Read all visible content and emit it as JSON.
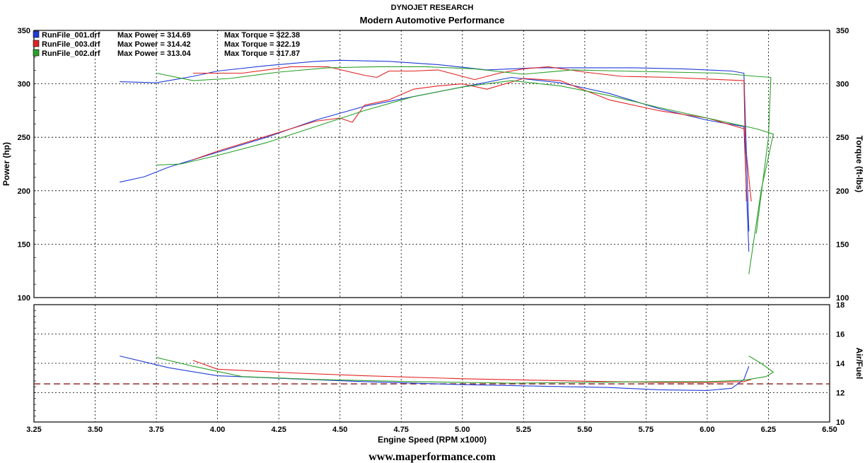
{
  "header": {
    "title": "DYNOJET RESEARCH",
    "subtitle": "Modern Automotive Performance"
  },
  "footer": {
    "url": "www.maperformance.com"
  },
  "legend": [
    {
      "file": "RunFile_001.drf",
      "power_text": "Max Power = 314.69",
      "torque_text": "Max Torque = 322.38",
      "color": "#1f3bd6"
    },
    {
      "file": "RunFile_003.drf",
      "power_text": "Max Power = 314.42",
      "torque_text": "Max Torque = 322.19",
      "color": "#e02424"
    },
    {
      "file": "RunFile_002.drf",
      "power_text": "Max Power = 313.04",
      "torque_text": "Max Torque = 317.87",
      "color": "#2ca02c"
    }
  ],
  "chart_data": [
    {
      "type": "line",
      "panel": "power-torque",
      "xlabel": "Engine Speed (RPM x1000)",
      "ylabel": "Power (hp)",
      "y2label": "Torque (ft-lbs)",
      "xlim": [
        3.25,
        6.5
      ],
      "ylim": [
        100,
        350
      ],
      "x_ticks": [
        "3.25",
        "3.50",
        "3.75",
        "4.00",
        "4.25",
        "4.50",
        "4.75",
        "5.00",
        "5.25",
        "5.50",
        "5.75",
        "6.00",
        "6.25",
        "6.50"
      ],
      "y_ticks": [
        "100",
        "150",
        "200",
        "250",
        "300",
        "350"
      ],
      "grid": true,
      "legend_position": "top-left",
      "series": [
        {
          "name": "RunFile_001.drf",
          "measure": "Power",
          "color": "#1f3bd6",
          "x": [
            3.6,
            3.7,
            3.8,
            4.0,
            4.2,
            4.4,
            4.6,
            4.8,
            5.0,
            5.2,
            5.4,
            5.6,
            5.8,
            6.0,
            6.15,
            6.17
          ],
          "y": [
            208,
            213,
            222,
            236,
            250,
            266,
            279,
            288,
            297,
            306,
            301,
            291,
            277,
            266,
            260,
            143
          ]
        },
        {
          "name": "RunFile_003.drf",
          "measure": "Power",
          "color": "#e02424",
          "x": [
            3.9,
            4.0,
            4.2,
            4.4,
            4.5,
            4.55,
            4.6,
            4.7,
            4.8,
            4.9,
            5.0,
            5.1,
            5.25,
            5.4,
            5.6,
            5.8,
            6.0,
            6.15,
            6.18
          ],
          "y": [
            229,
            237,
            251,
            265,
            268,
            264,
            280,
            285,
            295,
            298,
            300,
            295,
            305,
            303,
            285,
            275,
            268,
            258,
            190
          ]
        },
        {
          "name": "RunFile_002.drf",
          "measure": "Power",
          "color": "#2ca02c",
          "x": [
            3.75,
            3.85,
            4.0,
            4.2,
            4.4,
            4.6,
            4.8,
            5.0,
            5.2,
            5.4,
            5.6,
            5.8,
            6.0,
            6.2,
            6.27,
            6.22,
            6.17
          ],
          "y": [
            224,
            225,
            233,
            245,
            260,
            275,
            288,
            297,
            303,
            298,
            289,
            278,
            268,
            258,
            253,
            200,
            122
          ]
        },
        {
          "name": "RunFile_001.drf",
          "measure": "Torque",
          "color": "#1f3bd6",
          "x": [
            3.6,
            3.75,
            3.9,
            4.0,
            4.2,
            4.4,
            4.5,
            4.7,
            4.9,
            5.1,
            5.3,
            5.5,
            5.7,
            5.9,
            6.1,
            6.15,
            6.17
          ],
          "y": [
            302,
            301,
            307,
            312,
            317,
            321,
            322,
            321,
            318,
            313,
            315,
            315,
            315,
            314,
            312,
            310,
            162
          ]
        },
        {
          "name": "RunFile_003.drf",
          "measure": "Torque",
          "color": "#e02424",
          "x": [
            3.9,
            4.1,
            4.3,
            4.45,
            4.6,
            4.65,
            4.7,
            4.8,
            4.9,
            5.05,
            5.15,
            5.25,
            5.35,
            5.5,
            5.65,
            5.85,
            6.05,
            6.15,
            6.16
          ],
          "y": [
            310,
            310,
            316,
            316,
            308,
            306,
            312,
            312,
            313,
            304,
            310,
            314,
            316,
            311,
            307,
            306,
            304,
            303,
            190
          ]
        },
        {
          "name": "RunFile_002.drf",
          "measure": "Torque",
          "color": "#2ca02c",
          "x": [
            3.75,
            3.9,
            4.05,
            4.25,
            4.45,
            4.65,
            4.85,
            5.05,
            5.25,
            5.45,
            5.65,
            5.85,
            6.05,
            6.2,
            6.26,
            6.25,
            6.2
          ],
          "y": [
            310,
            303,
            305,
            311,
            315,
            316,
            316,
            314,
            309,
            313,
            312,
            311,
            310,
            307,
            306,
            250,
            160
          ]
        }
      ]
    },
    {
      "type": "line",
      "panel": "air-fuel",
      "xlabel": "Engine Speed (RPM x1000)",
      "ylabel": "Air/Fuel",
      "xlim": [
        3.25,
        6.5
      ],
      "ylim": [
        10,
        18
      ],
      "y_ticks": [
        "10",
        "12",
        "14",
        "16",
        "18"
      ],
      "grid": true,
      "reference_line": {
        "y": 12.6,
        "color": "#8b1a1a",
        "style": "dashed"
      },
      "series": [
        {
          "name": "RunFile_001.drf",
          "color": "#1f3bd6",
          "x": [
            3.6,
            3.8,
            4.0,
            4.3,
            4.6,
            5.0,
            5.3,
            5.6,
            5.8,
            6.0,
            6.1,
            6.15,
            6.17
          ],
          "y": [
            14.5,
            13.7,
            13.15,
            12.95,
            12.75,
            12.55,
            12.45,
            12.35,
            12.2,
            12.15,
            12.3,
            12.9,
            13.8
          ]
        },
        {
          "name": "RunFile_003.drf",
          "color": "#e02424",
          "x": [
            3.9,
            4.0,
            4.3,
            4.6,
            5.0,
            5.3,
            5.6,
            5.8,
            6.0,
            6.15,
            6.18
          ],
          "y": [
            14.2,
            13.6,
            13.35,
            13.15,
            12.95,
            12.85,
            12.75,
            12.7,
            12.7,
            12.75,
            12.9
          ]
        },
        {
          "name": "RunFile_002.drf",
          "color": "#2ca02c",
          "x": [
            3.75,
            3.9,
            4.1,
            4.4,
            4.8,
            5.2,
            5.5,
            5.8,
            6.0,
            6.15,
            6.24,
            6.27,
            6.22,
            6.17
          ],
          "y": [
            14.4,
            13.8,
            13.1,
            12.9,
            12.75,
            12.65,
            12.7,
            12.75,
            12.75,
            12.85,
            13.1,
            13.4,
            14.0,
            14.5
          ]
        }
      ]
    }
  ]
}
